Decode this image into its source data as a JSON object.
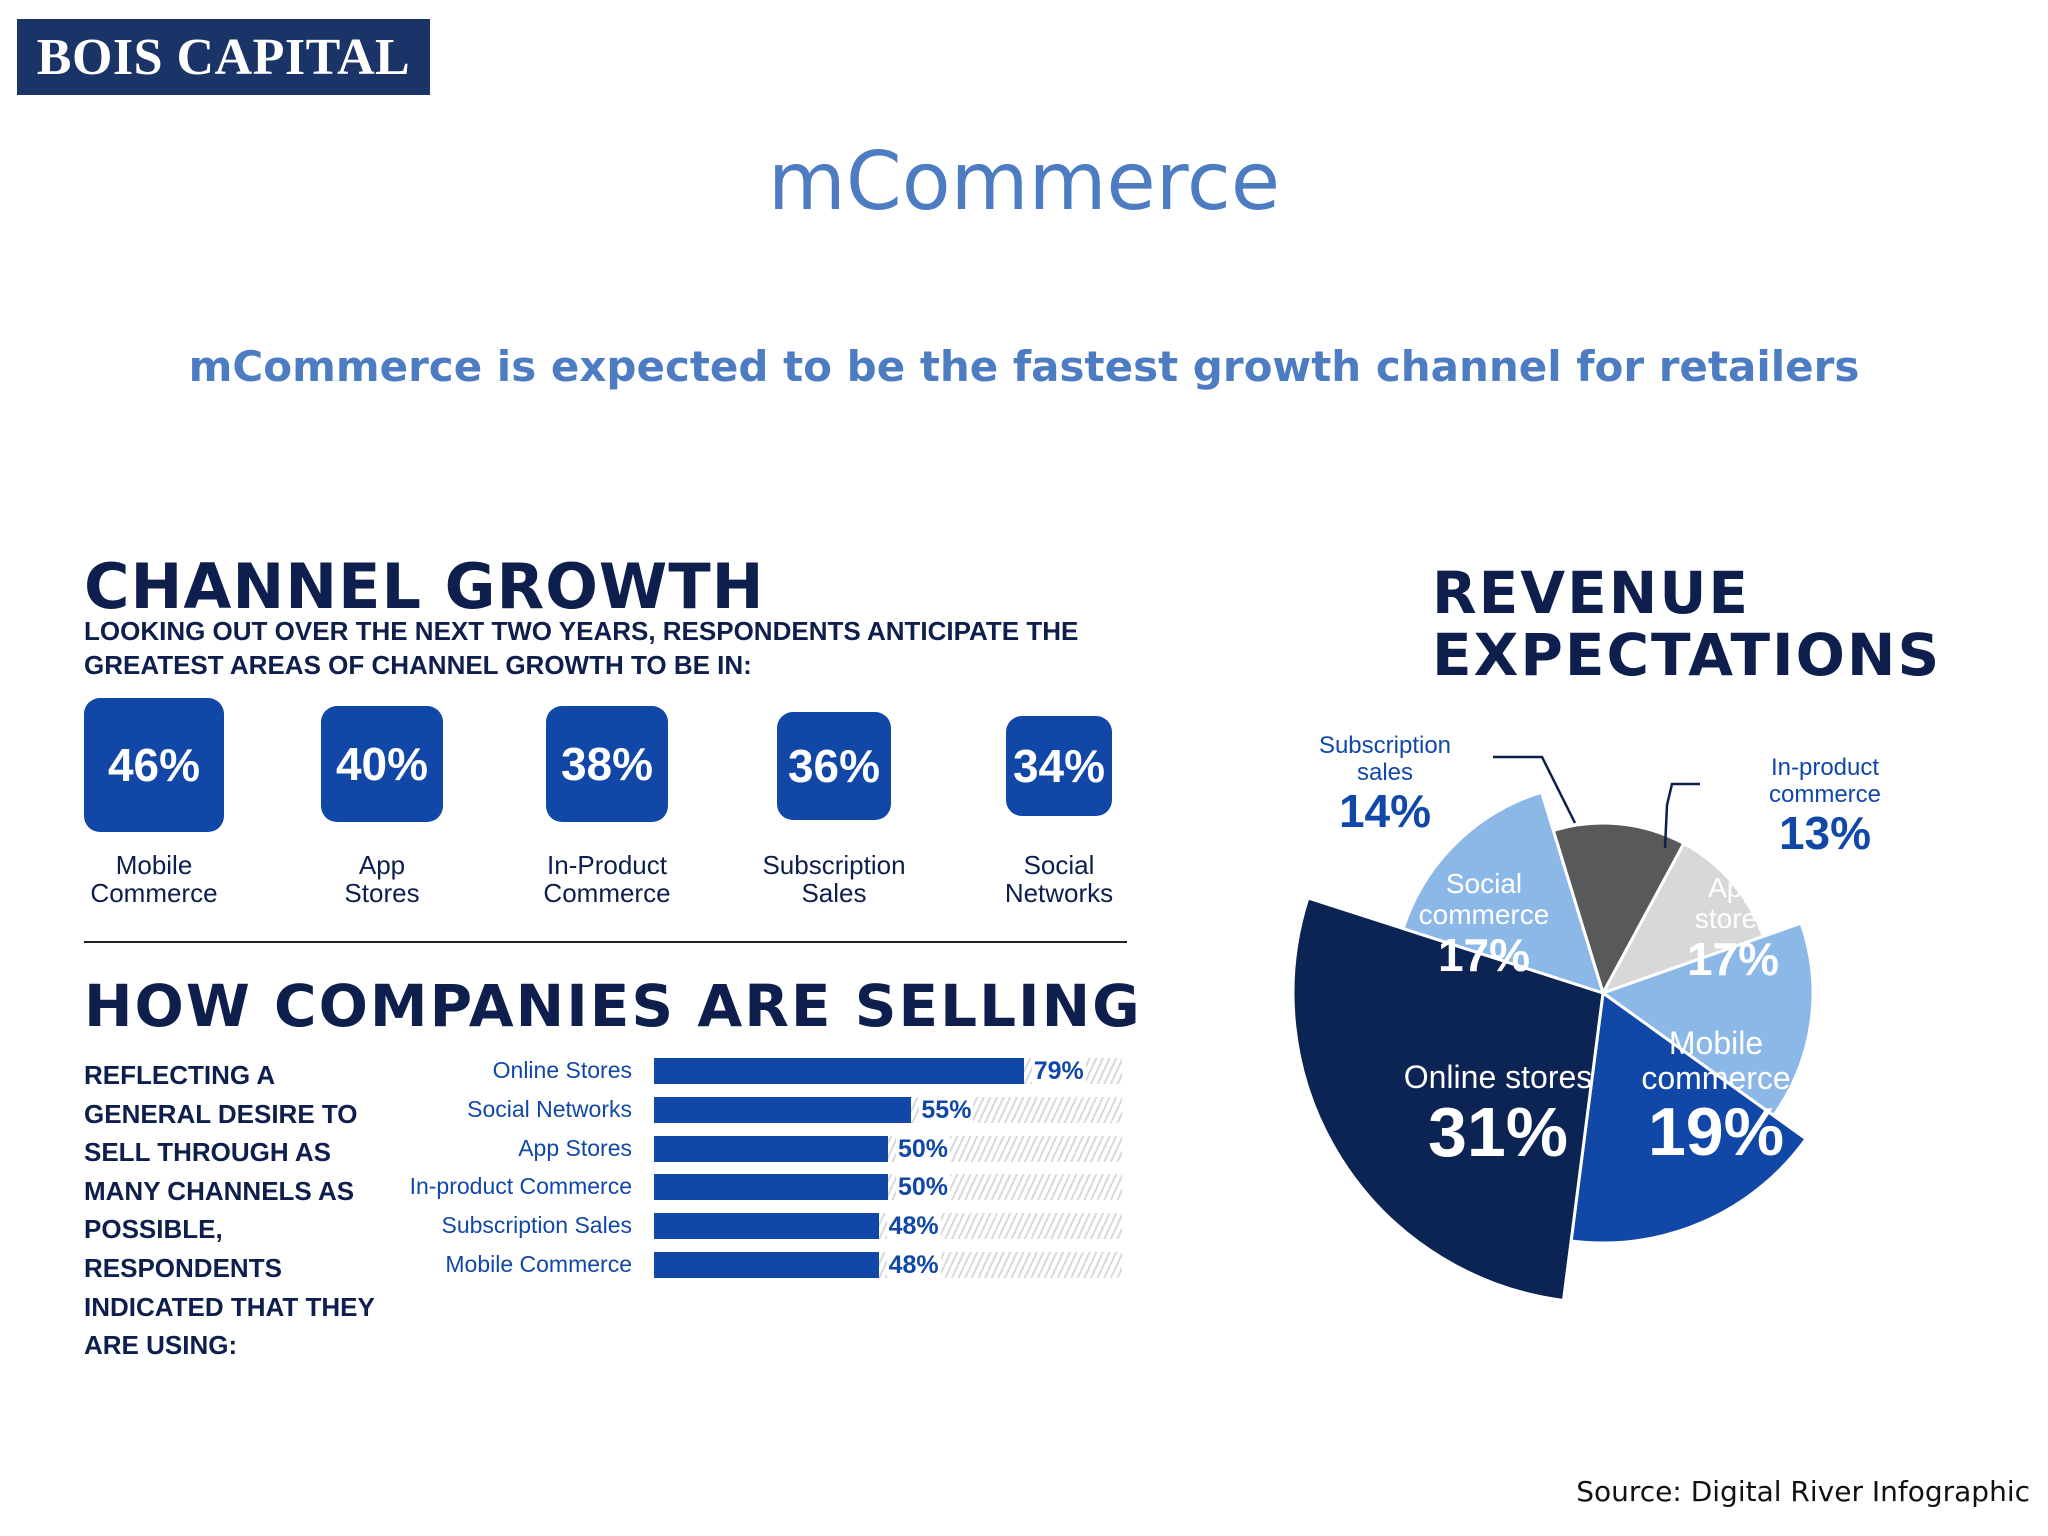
{
  "logo": "BOIS CAPITAL",
  "title": "mCommerce",
  "subtitle": "mCommerce  is expected to be the fastest growth channel for retailers",
  "source": "Source:  Digital River Infographic",
  "chart_data": [
    {
      "type": "bar",
      "title": "CHANNEL GROWTH",
      "subtitle": "LOOKING OUT OVER THE NEXT TWO YEARS, RESPONDENTS ANTICIPATE THE GREATEST AREAS OF CHANNEL GROWTH TO BE IN:",
      "categories": [
        "Mobile Commerce",
        "App Stores",
        "In-Product Commerce",
        "Subscription Sales",
        "Social Networks"
      ],
      "values": [
        46,
        40,
        38,
        36,
        34
      ],
      "labels": [
        "46%",
        "40%",
        "38%",
        "36%",
        "34%"
      ]
    },
    {
      "type": "bar",
      "title": "HOW COMPANIES ARE SELLING",
      "subtitle": "REFLECTING A GENERAL DESIRE TO SELL THROUGH AS MANY CHANNELS AS POSSIBLE, RESPONDENTS INDICATED THAT THEY ARE USING:",
      "categories": [
        "Online Stores",
        "Social Networks",
        "App Stores",
        "In-product Commerce",
        "Subscription Sales",
        "Mobile Commerce"
      ],
      "values": [
        79,
        55,
        50,
        50,
        48,
        48
      ],
      "labels": [
        "79%",
        "55%",
        "50%",
        "50%",
        "48%",
        "48%"
      ],
      "xlim": [
        0,
        100
      ]
    },
    {
      "type": "pie",
      "title": "REVENUE EXPECTATIONS",
      "slices": [
        {
          "name": "Subscription sales",
          "value": 14,
          "label": "14%",
          "color": "#58595b"
        },
        {
          "name": "In-product commerce",
          "value": 13,
          "label": "13%",
          "color": "#d8d8da"
        },
        {
          "name": "App stores",
          "value": 17,
          "label": "17%",
          "color": "#8cb8e8"
        },
        {
          "name": "Mobile commerce",
          "value": 19,
          "label": "19%",
          "color": "#1148a8"
        },
        {
          "name": "Online stores",
          "value": 31,
          "label": "31%",
          "color": "#0c2454"
        },
        {
          "name": "Social commerce",
          "value": 17,
          "label": "17%",
          "color": "#8cb8e8"
        }
      ]
    }
  ]
}
